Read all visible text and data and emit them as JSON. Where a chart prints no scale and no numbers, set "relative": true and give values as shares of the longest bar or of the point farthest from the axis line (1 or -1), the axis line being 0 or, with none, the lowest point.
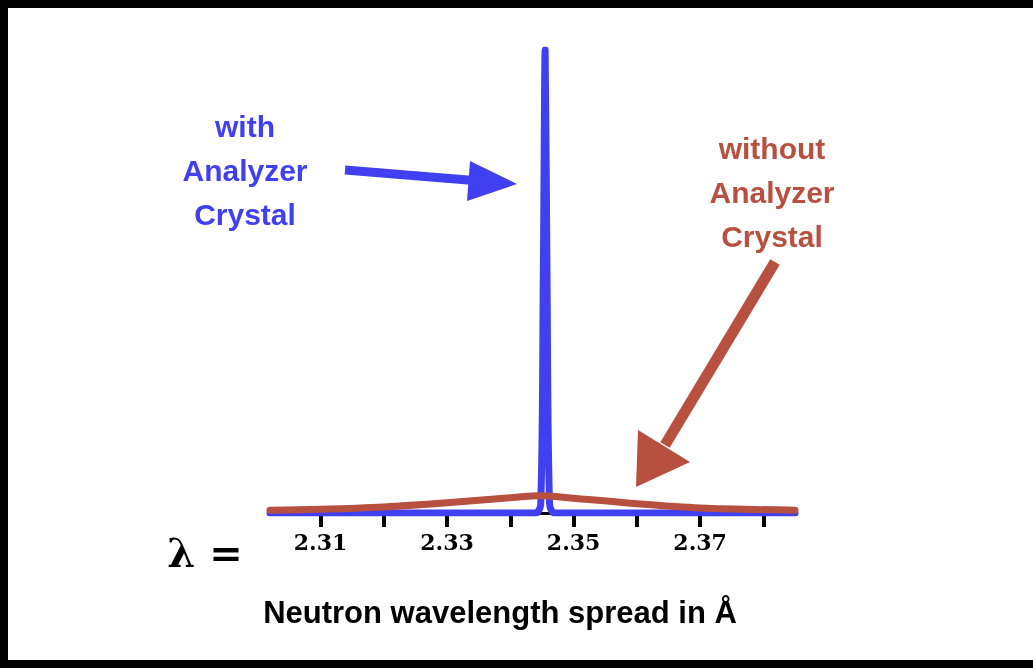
{
  "chart_data": {
    "type": "line",
    "relative": true,
    "xlabel": "Neutron wavelength spread in Å",
    "annotations": [
      "λ ="
    ],
    "xlim": [
      2.302,
      2.385
    ],
    "xticks": [
      2.31,
      {
        "value": 2.32,
        "label": null
      },
      2.33,
      {
        "value": 2.34,
        "label": null
      },
      2.35,
      {
        "value": 2.36,
        "label": null
      },
      2.37,
      {
        "value": 2.38,
        "label": null
      }
    ],
    "grid": false,
    "legend": "top left",
    "marker": "none",
    "line_style": "solid",
    "series": [
      {
        "name": "with Analyzer Crystal",
        "color": "#4040f0",
        "x": [
          2.302,
          2.344,
          2.3448,
          2.3452,
          2.3455,
          2.3458,
          2.3462,
          2.347,
          2.385
        ],
        "values": [
          0,
          0,
          0.02,
          0.5,
          1,
          0.5,
          0.02,
          0,
          0
        ]
      },
      {
        "name": "without Analyzer Crystal",
        "color": "#b85040",
        "x": [
          2.302,
          2.31,
          2.32,
          2.33,
          2.34,
          2.345,
          2.35,
          2.36,
          2.37,
          2.385
        ],
        "values": [
          0.006,
          0.008,
          0.013,
          0.022,
          0.033,
          0.037,
          0.032,
          0.02,
          0.011,
          0.006
        ]
      }
    ]
  }
}
